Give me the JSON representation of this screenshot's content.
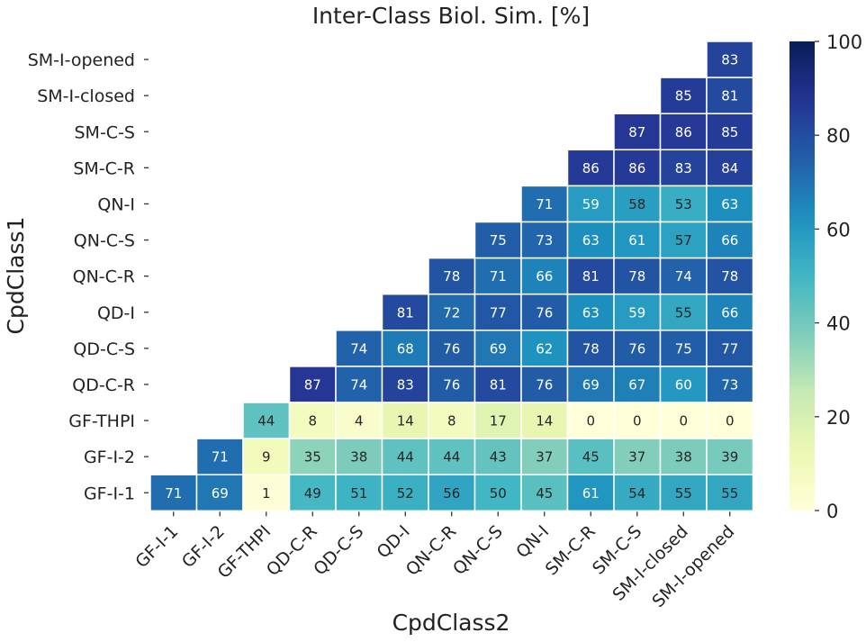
{
  "chart_data": {
    "type": "heatmap",
    "title": "Inter-Class Biol. Sim. [%]",
    "xlabel": "CpdClass2",
    "ylabel": "CpdClass1",
    "x_categories": [
      "GF-I-1",
      "GF-I-2",
      "GF-THPI",
      "QD-C-R",
      "QD-C-S",
      "QD-I",
      "QN-C-R",
      "QN-C-S",
      "QN-I",
      "SM-C-R",
      "SM-C-S",
      "SM-I-closed",
      "SM-I-opened"
    ],
    "y_categories": [
      "SM-I-opened",
      "SM-I-closed",
      "SM-C-S",
      "SM-C-R",
      "QN-I",
      "QN-C-S",
      "QN-C-R",
      "QD-I",
      "QD-C-S",
      "QD-C-R",
      "GF-THPI",
      "GF-I-2",
      "GF-I-1"
    ],
    "values": [
      [
        null,
        null,
        null,
        null,
        null,
        null,
        null,
        null,
        null,
        null,
        null,
        null,
        83
      ],
      [
        null,
        null,
        null,
        null,
        null,
        null,
        null,
        null,
        null,
        null,
        null,
        85,
        81
      ],
      [
        null,
        null,
        null,
        null,
        null,
        null,
        null,
        null,
        null,
        null,
        87,
        86,
        85
      ],
      [
        null,
        null,
        null,
        null,
        null,
        null,
        null,
        null,
        null,
        86,
        86,
        83,
        84
      ],
      [
        null,
        null,
        null,
        null,
        null,
        null,
        null,
        null,
        71,
        59,
        58,
        53,
        63
      ],
      [
        null,
        null,
        null,
        null,
        null,
        null,
        null,
        75,
        73,
        63,
        61,
        57,
        66
      ],
      [
        null,
        null,
        null,
        null,
        null,
        null,
        78,
        71,
        66,
        81,
        78,
        74,
        78
      ],
      [
        null,
        null,
        null,
        null,
        null,
        81,
        72,
        77,
        76,
        63,
        59,
        55,
        66
      ],
      [
        null,
        null,
        null,
        null,
        74,
        68,
        76,
        69,
        62,
        78,
        76,
        75,
        77
      ],
      [
        null,
        null,
        null,
        87,
        74,
        83,
        76,
        81,
        76,
        69,
        67,
        60,
        73
      ],
      [
        null,
        null,
        44,
        8,
        4,
        14,
        8,
        17,
        14,
        0,
        0,
        0,
        0
      ],
      [
        null,
        71,
        9,
        35,
        38,
        44,
        44,
        43,
        37,
        45,
        37,
        38,
        39
      ],
      [
        71,
        69,
        1,
        49,
        51,
        52,
        56,
        50,
        45,
        61,
        54,
        55,
        55
      ]
    ],
    "colorbar": {
      "colormap": "YlGnBu",
      "range": [
        0,
        100
      ],
      "ticks": [
        "0",
        "20",
        "40",
        "60",
        "80",
        "100"
      ]
    },
    "grid": false
  }
}
